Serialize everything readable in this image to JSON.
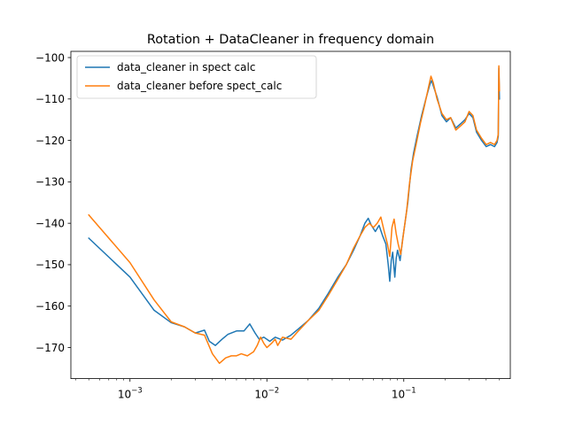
{
  "chart_data": {
    "type": "line",
    "title": "Rotation + DataCleaner in frequency domain",
    "xlabel": "",
    "ylabel": "",
    "x_scale": "log",
    "xlim": [
      0.00037,
      0.6
    ],
    "ylim": [
      -177.5,
      -98.5
    ],
    "x_ticks": [
      {
        "value": 0.001,
        "base": "10",
        "exp": "−3"
      },
      {
        "value": 0.01,
        "base": "10",
        "exp": "−2"
      },
      {
        "value": 0.1,
        "base": "10",
        "exp": "−1"
      }
    ],
    "y_ticks": [
      {
        "value": -100,
        "label": "−100"
      },
      {
        "value": -110,
        "label": "−110"
      },
      {
        "value": -120,
        "label": "−120"
      },
      {
        "value": -130,
        "label": "−130"
      },
      {
        "value": -140,
        "label": "−140"
      },
      {
        "value": -150,
        "label": "−150"
      },
      {
        "value": -160,
        "label": "−160"
      },
      {
        "value": -170,
        "label": "−170"
      }
    ],
    "grid": false,
    "legend_position": "upper-left",
    "series": [
      {
        "name": "data_cleaner in spect calc",
        "color": "#1f77b4",
        "points": [
          [
            0.0005,
            -143.6
          ],
          [
            0.001,
            -153.0
          ],
          [
            0.0015,
            -161.0
          ],
          [
            0.002,
            -164.0
          ],
          [
            0.0025,
            -165.0
          ],
          [
            0.003,
            -166.5
          ],
          [
            0.0035,
            -165.8
          ],
          [
            0.0038,
            -168.5
          ],
          [
            0.0042,
            -169.5
          ],
          [
            0.0047,
            -168.0
          ],
          [
            0.0052,
            -166.8
          ],
          [
            0.006,
            -166.0
          ],
          [
            0.0068,
            -166.0
          ],
          [
            0.0075,
            -164.3
          ],
          [
            0.0082,
            -166.5
          ],
          [
            0.0088,
            -168.0
          ],
          [
            0.0095,
            -167.5
          ],
          [
            0.0105,
            -168.5
          ],
          [
            0.0115,
            -167.5
          ],
          [
            0.013,
            -168.2
          ],
          [
            0.015,
            -167.0
          ],
          [
            0.017,
            -165.5
          ],
          [
            0.02,
            -163.5
          ],
          [
            0.024,
            -160.5
          ],
          [
            0.028,
            -157.0
          ],
          [
            0.033,
            -153.0
          ],
          [
            0.038,
            -150.0
          ],
          [
            0.043,
            -146.5
          ],
          [
            0.048,
            -143.0
          ],
          [
            0.052,
            -140.0
          ],
          [
            0.055,
            -138.8
          ],
          [
            0.058,
            -140.5
          ],
          [
            0.062,
            -142.0
          ],
          [
            0.066,
            -140.5
          ],
          [
            0.07,
            -143.0
          ],
          [
            0.074,
            -145.0
          ],
          [
            0.077,
            -150.0
          ],
          [
            0.079,
            -154.0
          ],
          [
            0.081,
            -149.0
          ],
          [
            0.083,
            -147.0
          ],
          [
            0.086,
            -153.0
          ],
          [
            0.088,
            -148.5
          ],
          [
            0.09,
            -146.5
          ],
          [
            0.094,
            -149.0
          ],
          [
            0.098,
            -144.0
          ],
          [
            0.102,
            -140.0
          ],
          [
            0.107,
            -135.0
          ],
          [
            0.113,
            -127.0
          ],
          [
            0.118,
            -123.0
          ],
          [
            0.125,
            -119.0
          ],
          [
            0.135,
            -114.0
          ],
          [
            0.145,
            -110.0
          ],
          [
            0.155,
            -106.5
          ],
          [
            0.16,
            -105.5
          ],
          [
            0.165,
            -107.0
          ],
          [
            0.175,
            -109.5
          ],
          [
            0.19,
            -114.0
          ],
          [
            0.205,
            -115.5
          ],
          [
            0.22,
            -114.5
          ],
          [
            0.24,
            -117.0
          ],
          [
            0.26,
            -116.0
          ],
          [
            0.28,
            -115.0
          ],
          [
            0.3,
            -113.5
          ],
          [
            0.32,
            -114.5
          ],
          [
            0.34,
            -118.0
          ],
          [
            0.37,
            -120.0
          ],
          [
            0.4,
            -121.5
          ],
          [
            0.43,
            -121.0
          ],
          [
            0.46,
            -121.5
          ],
          [
            0.48,
            -120.5
          ],
          [
            0.49,
            -119.0
          ],
          [
            0.495,
            -102.5
          ],
          [
            0.5,
            -110.0
          ]
        ]
      },
      {
        "name": "data_cleaner before spect_calc",
        "color": "#ff7f0e",
        "points": [
          [
            0.0005,
            -138.0
          ],
          [
            0.001,
            -149.5
          ],
          [
            0.0015,
            -158.5
          ],
          [
            0.002,
            -163.8
          ],
          [
            0.0025,
            -165.0
          ],
          [
            0.003,
            -166.5
          ],
          [
            0.0035,
            -167.0
          ],
          [
            0.004,
            -171.5
          ],
          [
            0.0045,
            -173.8
          ],
          [
            0.005,
            -172.5
          ],
          [
            0.0055,
            -172.0
          ],
          [
            0.006,
            -172.0
          ],
          [
            0.0065,
            -171.5
          ],
          [
            0.0072,
            -172.0
          ],
          [
            0.008,
            -171.0
          ],
          [
            0.0085,
            -169.5
          ],
          [
            0.009,
            -167.5
          ],
          [
            0.0095,
            -169.0
          ],
          [
            0.01,
            -170.0
          ],
          [
            0.0108,
            -169.0
          ],
          [
            0.0115,
            -168.0
          ],
          [
            0.012,
            -169.5
          ],
          [
            0.013,
            -167.5
          ],
          [
            0.015,
            -168.0
          ],
          [
            0.017,
            -166.0
          ],
          [
            0.02,
            -163.5
          ],
          [
            0.024,
            -161.0
          ],
          [
            0.028,
            -157.5
          ],
          [
            0.033,
            -153.5
          ],
          [
            0.038,
            -150.0
          ],
          [
            0.043,
            -146.0
          ],
          [
            0.048,
            -143.0
          ],
          [
            0.052,
            -141.0
          ],
          [
            0.056,
            -140.0
          ],
          [
            0.06,
            -141.0
          ],
          [
            0.064,
            -140.0
          ],
          [
            0.068,
            -138.5
          ],
          [
            0.072,
            -142.0
          ],
          [
            0.076,
            -145.0
          ],
          [
            0.079,
            -148.0
          ],
          [
            0.082,
            -141.0
          ],
          [
            0.085,
            -139.0
          ],
          [
            0.088,
            -142.5
          ],
          [
            0.091,
            -145.0
          ],
          [
            0.095,
            -147.5
          ],
          [
            0.1,
            -142.0
          ],
          [
            0.105,
            -137.0
          ],
          [
            0.11,
            -130.5
          ],
          [
            0.116,
            -125.0
          ],
          [
            0.123,
            -121.0
          ],
          [
            0.132,
            -116.0
          ],
          [
            0.142,
            -111.5
          ],
          [
            0.152,
            -107.0
          ],
          [
            0.158,
            -104.5
          ],
          [
            0.164,
            -106.0
          ],
          [
            0.175,
            -110.0
          ],
          [
            0.19,
            -113.5
          ],
          [
            0.205,
            -115.0
          ],
          [
            0.22,
            -114.5
          ],
          [
            0.24,
            -117.5
          ],
          [
            0.26,
            -116.5
          ],
          [
            0.28,
            -115.5
          ],
          [
            0.3,
            -113.0
          ],
          [
            0.32,
            -114.0
          ],
          [
            0.34,
            -117.5
          ],
          [
            0.37,
            -119.5
          ],
          [
            0.4,
            -121.0
          ],
          [
            0.43,
            -120.5
          ],
          [
            0.46,
            -121.0
          ],
          [
            0.48,
            -120.0
          ],
          [
            0.49,
            -118.5
          ],
          [
            0.495,
            -102.0
          ],
          [
            0.5,
            -108.0
          ]
        ]
      }
    ]
  }
}
